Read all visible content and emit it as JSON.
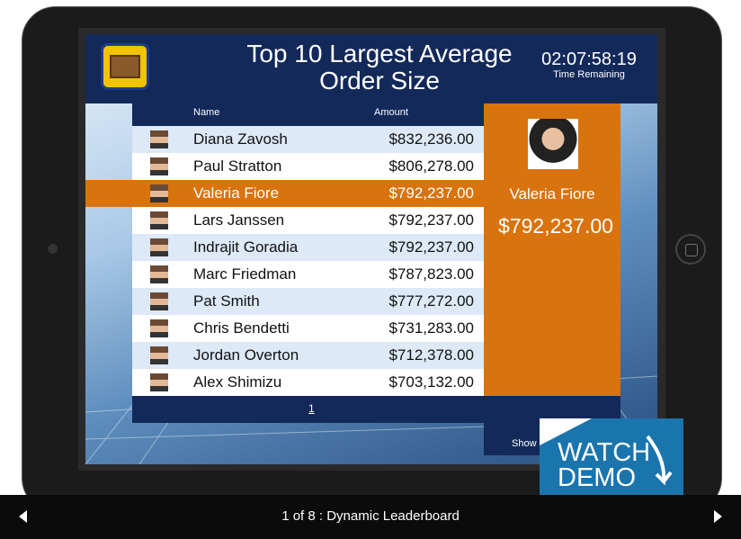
{
  "header": {
    "title": "Top 10 Largest Average Order Size",
    "timer": "02:07:58:19",
    "timer_label": "Time Remaining"
  },
  "table": {
    "columns": [
      "Name",
      "Amount"
    ],
    "rows": [
      [
        "Diana Zavosh",
        "$832,236.00"
      ],
      [
        "Paul Stratton",
        "$806,278.00"
      ],
      [
        "Valeria Fiore",
        "$792,237.00"
      ],
      [
        "Lars Janssen",
        "$792,237.00"
      ],
      [
        "Indrajit Goradia",
        "$792,237.00"
      ],
      [
        "Marc Friedman",
        "$787,823.00"
      ],
      [
        "Pat Smith",
        "$777,272.00"
      ],
      [
        "Chris Bendetti",
        "$731,283.00"
      ],
      [
        "Jordan Overton",
        "$712,378.00"
      ],
      [
        "Alex Shimizu",
        "$703,132.00"
      ]
    ],
    "page": "1"
  },
  "spotlight": {
    "name": "Valeria Fiore",
    "amount": "$792,237.00"
  },
  "show_more": "Show M",
  "badge": {
    "line1": "WATCH",
    "line2": "DEMO"
  },
  "footer": {
    "caption": "1 of 8 : Dynamic Leaderboard"
  }
}
